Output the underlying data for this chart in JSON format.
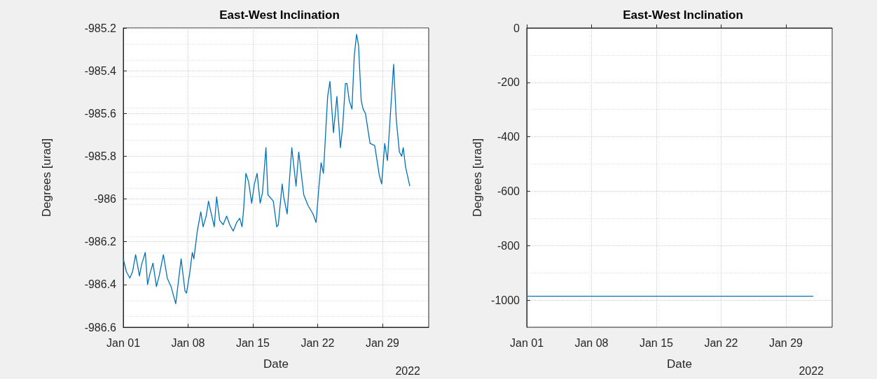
{
  "chart_data": [
    {
      "type": "line",
      "title": "East-West Inclination",
      "xlabel": "Date",
      "ylabel": "Degrees [urad]",
      "annotations": [
        "2022"
      ],
      "grid": true,
      "xlim": [
        "2022-01-01",
        "2022-02-03"
      ],
      "xticks": [
        {
          "value": "2022-01-01",
          "label": "Jan 01"
        },
        {
          "value": "2022-01-08",
          "label": "Jan 08"
        },
        {
          "value": "2022-01-15",
          "label": "Jan 15"
        },
        {
          "value": "2022-01-22",
          "label": "Jan 22"
        },
        {
          "value": "2022-01-29",
          "label": "Jan 29"
        }
      ],
      "ylim": [
        -986.6,
        -985.2
      ],
      "yticks": [
        -986.6,
        -986.4,
        -986.2,
        -986,
        -985.8,
        -985.6,
        -985.4,
        -985.2
      ],
      "series": [
        {
          "color": "#0072bd",
          "x": [
            "2022-01-01T00:00",
            "2022-01-01T08:00",
            "2022-01-01T17:00",
            "2022-01-02T00:00",
            "2022-01-02T08:00",
            "2022-01-02T18:00",
            "2022-01-02T23:00",
            "2022-01-03T09:00",
            "2022-01-03T15:00",
            "2022-01-03T21:00",
            "2022-01-04T05:00",
            "2022-01-04T14:00",
            "2022-01-04T21:00",
            "2022-01-05T08:00",
            "2022-01-05T18:00",
            "2022-01-06T04:00",
            "2022-01-06T10:00",
            "2022-01-06T16:00",
            "2022-01-06T22:00",
            "2022-01-07T06:00",
            "2022-01-07T16:00",
            "2022-01-07T20:00",
            "2022-01-08T04:00",
            "2022-01-08T11:00",
            "2022-01-08T15:00",
            "2022-01-09T00:00",
            "2022-01-09T09:00",
            "2022-01-09T15:00",
            "2022-01-09T23:00",
            "2022-01-10T05:00",
            "2022-01-10T11:00",
            "2022-01-10T20:00",
            "2022-01-11T02:00",
            "2022-01-11T10:00",
            "2022-01-11T19:00",
            "2022-01-12T04:00",
            "2022-01-12T12:00",
            "2022-01-12T21:00",
            "2022-01-13T06:00",
            "2022-01-13T14:00",
            "2022-01-13T20:00",
            "2022-01-14T00:00",
            "2022-01-14T06:00",
            "2022-01-14T13:00",
            "2022-01-14T21:00",
            "2022-01-15T04:00",
            "2022-01-15T11:00",
            "2022-01-15T19:00",
            "2022-01-16T01:00",
            "2022-01-16T10:00",
            "2022-01-16T15:00",
            "2022-01-17T05:00",
            "2022-01-17T14:00",
            "2022-01-17T18:00",
            "2022-01-18T04:00",
            "2022-01-18T08:00",
            "2022-01-18T17:00",
            "2022-01-18T23:00",
            "2022-01-19T05:00",
            "2022-01-19T16:00",
            "2022-01-19T23:00",
            "2022-01-20T12:00",
            "2022-01-20T23:00",
            "2022-01-21T12:00",
            "2022-01-21T20:00",
            "2022-01-22T03:00",
            "2022-01-22T09:00",
            "2022-01-22T15:00",
            "2022-01-23T02:00",
            "2022-01-23T08:00",
            "2022-01-23T17:00",
            "2022-01-24T02:00",
            "2022-01-24T11:00",
            "2022-01-24T17:00",
            "2022-01-25T00:00",
            "2022-01-25T04:00",
            "2022-01-25T10:00",
            "2022-01-25T17:00",
            "2022-01-25T23:00",
            "2022-01-26T05:00",
            "2022-01-26T10:00",
            "2022-01-26T17:00",
            "2022-01-26T22:00",
            "2022-01-27T04:00",
            "2022-01-27T16:00",
            "2022-01-28T04:00",
            "2022-01-28T16:00",
            "2022-01-28T22:00",
            "2022-01-29T06:00",
            "2022-01-29T13:00",
            "2022-01-30T05:00",
            "2022-01-30T12:00",
            "2022-01-30T20:00",
            "2022-01-31T02:00",
            "2022-01-31T06:00",
            "2022-01-31T12:00",
            "2022-01-31T23:00"
          ],
          "values": [
            -986.28,
            -986.34,
            -986.37,
            -986.34,
            -986.26,
            -986.36,
            -986.31,
            -986.25,
            -986.4,
            -986.35,
            -986.3,
            -986.41,
            -986.36,
            -986.26,
            -986.37,
            -986.41,
            -986.45,
            -986.49,
            -986.4,
            -986.28,
            -986.43,
            -986.44,
            -986.35,
            -986.25,
            -986.28,
            -986.15,
            -986.06,
            -986.13,
            -986.08,
            -986.01,
            -986.06,
            -986.13,
            -985.99,
            -986.1,
            -986.12,
            -986.08,
            -986.12,
            -986.15,
            -986.11,
            -986.09,
            -986.13,
            -986.05,
            -985.88,
            -985.92,
            -986.02,
            -985.93,
            -985.88,
            -986.02,
            -985.97,
            -985.76,
            -985.98,
            -986.01,
            -986.13,
            -986.12,
            -985.93,
            -985.99,
            -986.07,
            -985.91,
            -985.76,
            -985.94,
            -985.78,
            -985.98,
            -986.03,
            -986.07,
            -986.11,
            -985.95,
            -985.83,
            -985.88,
            -985.52,
            -985.45,
            -985.69,
            -985.52,
            -985.76,
            -985.66,
            -985.46,
            -985.46,
            -985.54,
            -985.58,
            -985.33,
            -985.23,
            -985.28,
            -985.54,
            -985.58,
            -985.6,
            -985.74,
            -985.75,
            -985.89,
            -985.93,
            -985.74,
            -985.82,
            -985.37,
            -985.63,
            -985.78,
            -985.8,
            -985.76,
            -985.85,
            -985.94
          ]
        }
      ]
    },
    {
      "type": "line",
      "title": "East-West Inclination",
      "xlabel": "Date",
      "ylabel": "Degrees [urad]",
      "annotations": [
        "2022"
      ],
      "grid": true,
      "xlim": [
        "2022-01-01",
        "2022-02-03"
      ],
      "xticks": [
        {
          "value": "2022-01-01",
          "label": "Jan 01"
        },
        {
          "value": "2022-01-08",
          "label": "Jan 08"
        },
        {
          "value": "2022-01-15",
          "label": "Jan 15"
        },
        {
          "value": "2022-01-22",
          "label": "Jan 22"
        },
        {
          "value": "2022-01-29",
          "label": "Jan 29"
        }
      ],
      "ylim": [
        -1100,
        0
      ],
      "yticks": [
        -1000,
        -800,
        -600,
        -400,
        -200,
        0
      ],
      "series": [
        {
          "color": "#0072bd",
          "x": [
            "2022-01-01T00:00",
            "2022-01-16T00:00",
            "2022-01-31T23:00"
          ],
          "values": [
            -986,
            -986,
            -986
          ]
        }
      ]
    }
  ]
}
